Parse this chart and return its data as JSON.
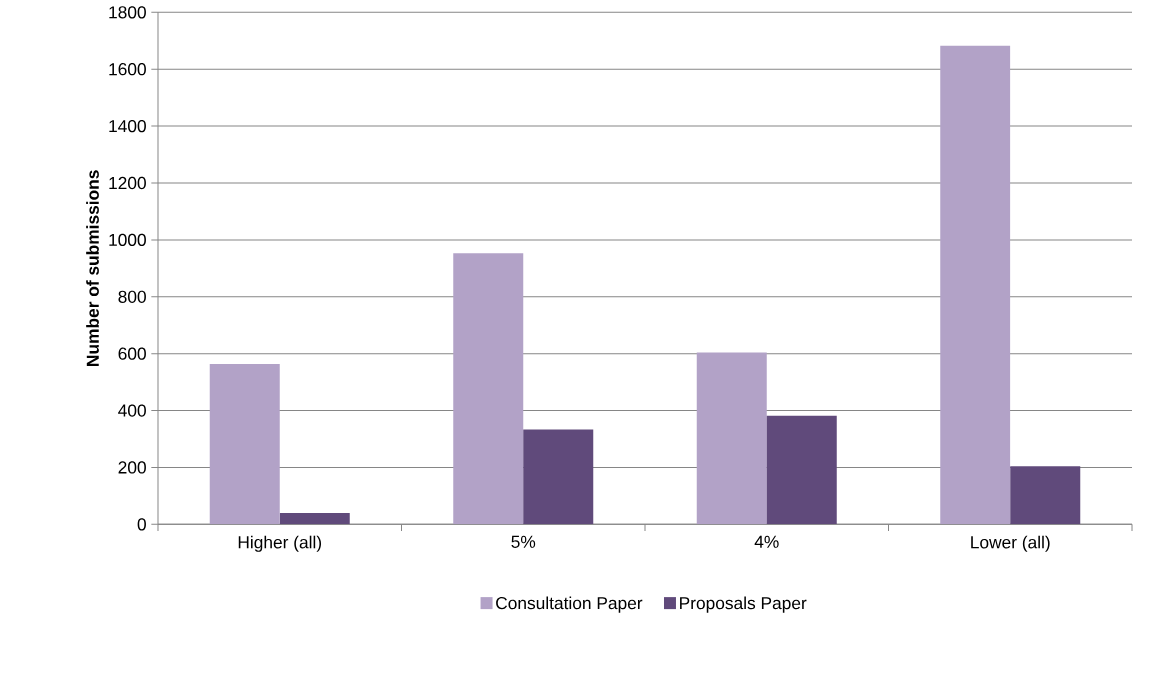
{
  "chart_data": {
    "type": "bar",
    "ylabel": "Number of submissions",
    "categories": [
      "Higher (all)",
      "5%",
      "4%",
      "Lower (all)"
    ],
    "series": [
      {
        "name": "Consultation Paper",
        "color": "#b2a2c7",
        "values": [
          564,
          953,
          604,
          1683
        ]
      },
      {
        "name": "Proposals Paper",
        "color": "#604a7b",
        "values": [
          40,
          333,
          382,
          204
        ]
      }
    ],
    "ylim": [
      0,
      1800
    ],
    "yticks": [
      0,
      200,
      400,
      600,
      800,
      1000,
      1200,
      1400,
      1600,
      1800
    ],
    "grid": "y",
    "legend": "bottom"
  }
}
